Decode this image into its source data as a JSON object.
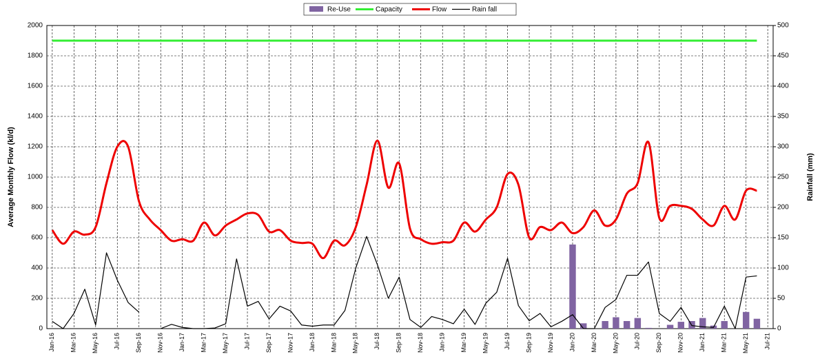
{
  "chart_data": {
    "type": "line",
    "categories": [
      "Jan-16",
      null,
      "Mar-16",
      null,
      "May-16",
      null,
      "Jul-16",
      null,
      "Sep-16",
      null,
      "Nov-16",
      null,
      "Jan-17",
      null,
      "Mar-17",
      null,
      "May-17",
      null,
      "Jul-17",
      null,
      "Sep-17",
      null,
      "Nov-17",
      null,
      "Jan-18",
      null,
      "Mar-18",
      null,
      "May-18",
      null,
      "Jul-18",
      null,
      "Sep-18",
      null,
      "Nov-18",
      null,
      "Jan-19",
      null,
      "Mar-19",
      null,
      "May-19",
      null,
      "Jul-19",
      null,
      "Sep-19",
      null,
      "Nov-19",
      null,
      "Jan-20",
      null,
      "Mar-20",
      null,
      "May-20",
      null,
      "Jul-20",
      null,
      "Sep-20",
      null,
      "Nov-20",
      null,
      "Jan-21",
      null,
      "Mar-21",
      null,
      "May-21",
      null,
      "Jul-21"
    ],
    "series": [
      {
        "name": "Re-Use",
        "type": "bar",
        "color": "#8064a2",
        "values": [
          null,
          null,
          null,
          null,
          null,
          null,
          null,
          null,
          null,
          null,
          null,
          null,
          null,
          null,
          null,
          null,
          null,
          null,
          null,
          null,
          null,
          null,
          null,
          null,
          null,
          null,
          null,
          null,
          null,
          null,
          null,
          null,
          null,
          null,
          null,
          null,
          null,
          null,
          null,
          null,
          null,
          null,
          null,
          null,
          null,
          null,
          null,
          null,
          555,
          35,
          null,
          50,
          75,
          50,
          70,
          5,
          null,
          25,
          45,
          50,
          70,
          20,
          50,
          null,
          110,
          65,
          null
        ]
      },
      {
        "name": "Capacity",
        "type": "line",
        "color": "#33ee33",
        "values": [
          1900,
          1900,
          1900,
          1900,
          1900,
          1900,
          1900,
          1900,
          1900,
          1900,
          1900,
          1900,
          1900,
          1900,
          1900,
          1900,
          1900,
          1900,
          1900,
          1900,
          1900,
          1900,
          1900,
          1900,
          1900,
          1900,
          1900,
          1900,
          1900,
          1900,
          1900,
          1900,
          1900,
          1900,
          1900,
          1900,
          1900,
          1900,
          1900,
          1900,
          1900,
          1900,
          1900,
          1900,
          1900,
          1900,
          1900,
          1900,
          1900,
          1900,
          1900,
          1900,
          1900,
          1900,
          1900,
          1900,
          1900,
          1900,
          1900,
          1900,
          1900,
          1900,
          1900,
          1900,
          1900,
          1900,
          null
        ]
      },
      {
        "name": "Flow",
        "type": "line",
        "smooth": true,
        "color": "#ee0000",
        "values": [
          650,
          560,
          640,
          620,
          670,
          960,
          1200,
          1200,
          840,
          720,
          650,
          580,
          590,
          580,
          700,
          615,
          680,
          720,
          760,
          750,
          640,
          650,
          580,
          565,
          560,
          465,
          580,
          550,
          670,
          950,
          1240,
          930,
          1090,
          660,
          590,
          560,
          570,
          580,
          700,
          640,
          720,
          800,
          1020,
          950,
          600,
          670,
          650,
          700,
          630,
          670,
          780,
          680,
          720,
          890,
          960,
          1230,
          730,
          810,
          810,
          790,
          720,
          680,
          810,
          720,
          910,
          910,
          null
        ]
      },
      {
        "name": "Rain fall",
        "type": "line",
        "axis": "y2",
        "color": "#000000",
        "values": [
          12,
          0,
          25,
          65,
          6,
          125,
          80,
          43,
          27,
          null,
          0,
          7,
          2,
          0,
          0,
          1,
          8,
          115,
          37,
          45,
          16,
          37,
          29,
          6,
          4,
          6,
          6,
          30,
          100,
          152,
          105,
          50,
          85,
          15,
          2,
          20,
          15,
          8,
          32,
          7,
          42,
          60,
          116,
          38,
          13,
          25,
          3,
          12,
          23,
          0,
          0,
          35,
          48,
          88,
          88,
          110,
          25,
          12,
          35,
          5,
          3,
          2,
          37,
          0,
          85,
          87,
          null
        ]
      }
    ],
    "ylabel": "Average Monthly Flow (kl/d)",
    "y2label": "Rainfall (mm)",
    "ylim": [
      0,
      2000
    ],
    "yticks": [
      0,
      200,
      400,
      600,
      800,
      1000,
      1200,
      1400,
      1600,
      1800,
      2000
    ],
    "y2lim": [
      0,
      500
    ],
    "y2ticks": [
      0,
      50,
      100,
      150,
      200,
      250,
      300,
      350,
      400,
      450,
      500
    ],
    "grid": true,
    "legend": "top"
  }
}
